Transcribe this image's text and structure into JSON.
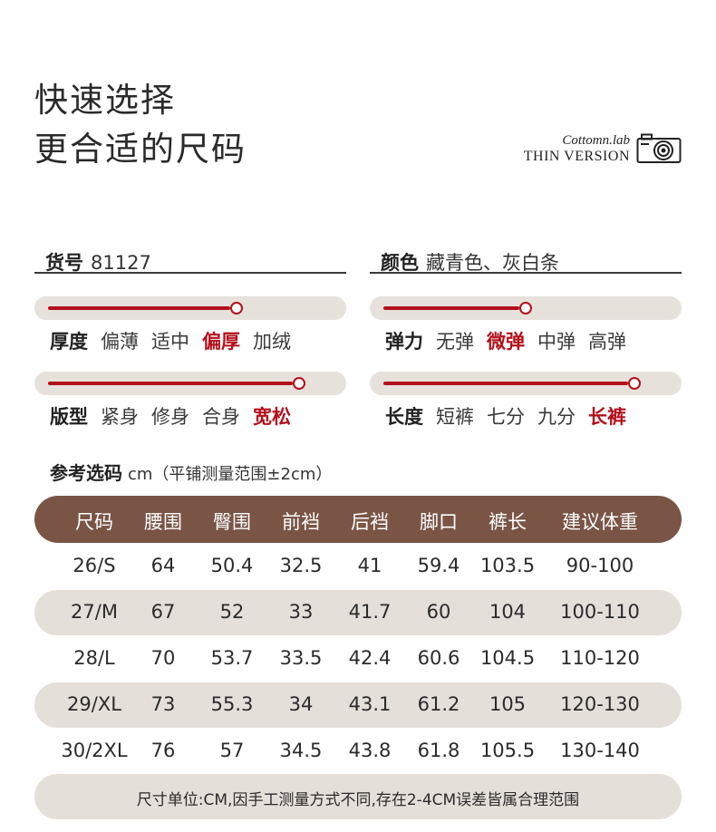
{
  "headline": {
    "line1": "快速选择",
    "line2": "更合适的尺码"
  },
  "brand": {
    "name": "Cottomn.lab",
    "version": "THIN VERSION",
    "icon": "camera-icon"
  },
  "info": {
    "item_label": "货号",
    "item_value": "81127",
    "color_label": "颜色",
    "color_value": "藏青色、灰白条"
  },
  "attributes": [
    {
      "title": "厚度",
      "options": [
        "偏薄",
        "适中",
        "偏厚",
        "加绒"
      ],
      "selected": 2,
      "level": 0.67
    },
    {
      "title": "弹力",
      "options": [
        "无弹",
        "微弹",
        "中弹",
        "高弹"
      ],
      "selected": 1,
      "level": 0.5
    },
    {
      "title": "版型",
      "options": [
        "紧身",
        "修身",
        "合身",
        "宽松"
      ],
      "selected": 3,
      "level": 0.9
    },
    {
      "title": "长度",
      "options": [
        "短裤",
        "七分",
        "九分",
        "长裤"
      ],
      "selected": 3,
      "level": 0.9
    }
  ],
  "size_section": {
    "title": "参考选码",
    "note": "cm（平铺测量范围±2cm）"
  },
  "table": {
    "headers": [
      "尺码",
      "腰围",
      "臀围",
      "前裆",
      "后裆",
      "脚口",
      "裤长",
      "建议体重"
    ],
    "rows": [
      [
        "26/S",
        "64",
        "50.4",
        "32.5",
        "41",
        "59.4",
        "103.5",
        "90-100"
      ],
      [
        "27/M",
        "67",
        "52",
        "33",
        "41.7",
        "60",
        "104",
        "100-110"
      ],
      [
        "28/L",
        "70",
        "53.7",
        "33.5",
        "42.4",
        "60.6",
        "104.5",
        "110-120"
      ],
      [
        "29/XL",
        "73",
        "55.3",
        "34",
        "43.1",
        "61.2",
        "105",
        "120-130"
      ],
      [
        "30/2XL",
        "76",
        "57",
        "34.5",
        "43.8",
        "61.8",
        "105.5",
        "130-140"
      ]
    ]
  },
  "footer": {
    "note": "尺寸单位:CM,因手工测量方式不同,存在2-4CM误差皆属合理范围"
  },
  "colors": {
    "accent": "#b3101c",
    "header_brown": "#7a5546",
    "row_stripe": "#e5dfda",
    "slider_track": "#e7e1dc"
  }
}
